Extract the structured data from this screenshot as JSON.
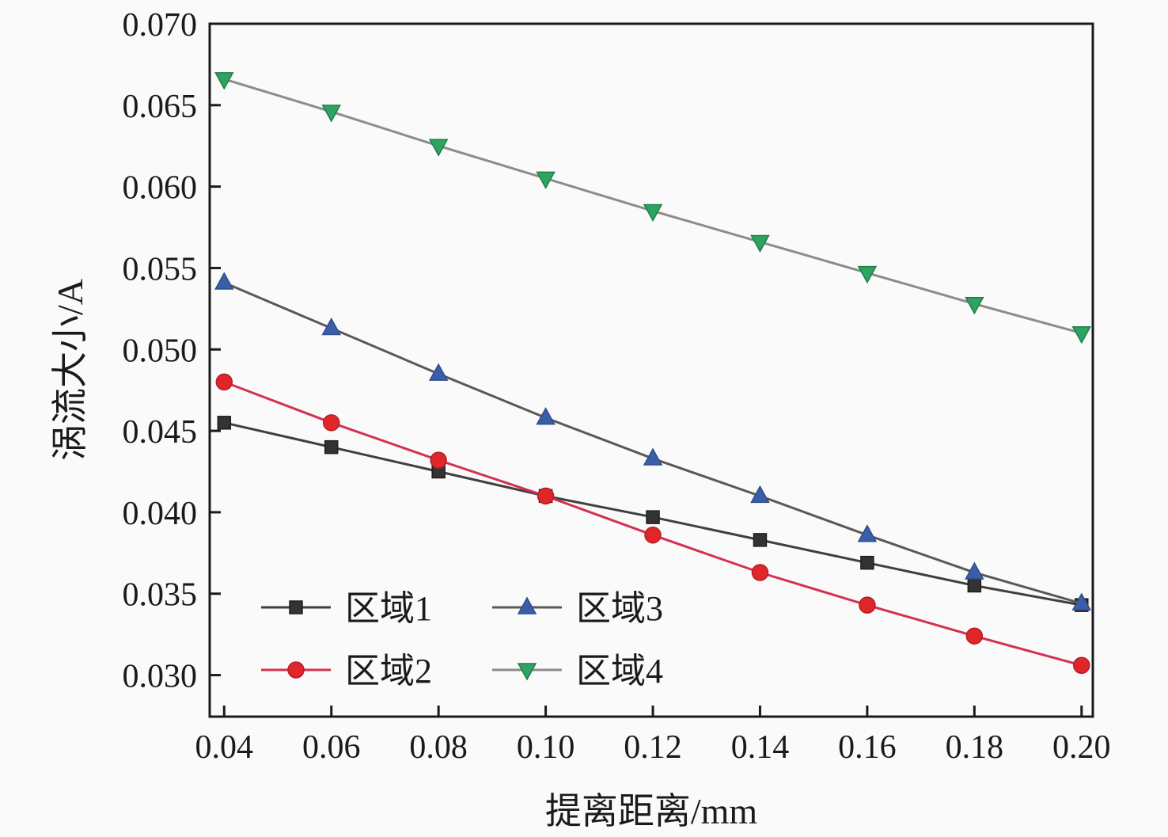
{
  "chart_data": {
    "type": "line",
    "title": "",
    "x_label": "提离距离/mm",
    "y_label": "涡流大小/A",
    "x": [
      0.04,
      0.06,
      0.08,
      0.1,
      0.12,
      0.14,
      0.16,
      0.18,
      0.2
    ],
    "x_axis": {
      "min": 0.0373,
      "max": 0.2021,
      "ticks": [
        {
          "v": 0.04,
          "label": "0.04"
        },
        {
          "v": 0.06,
          "label": "0.06"
        },
        {
          "v": 0.08,
          "label": "0.08"
        },
        {
          "v": 0.1,
          "label": "0.10"
        },
        {
          "v": 0.12,
          "label": "0.12"
        },
        {
          "v": 0.14,
          "label": "0.14"
        },
        {
          "v": 0.16,
          "label": "0.16"
        },
        {
          "v": 0.18,
          "label": "0.18"
        },
        {
          "v": 0.2,
          "label": "0.20"
        }
      ]
    },
    "y_axis": {
      "min": 0.02745,
      "max": 0.07,
      "ticks": [
        {
          "v": 0.03,
          "label": "0.030"
        },
        {
          "v": 0.035,
          "label": "0.035"
        },
        {
          "v": 0.04,
          "label": "0.040"
        },
        {
          "v": 0.045,
          "label": "0.045"
        },
        {
          "v": 0.05,
          "label": "0.050"
        },
        {
          "v": 0.055,
          "label": "0.055"
        },
        {
          "v": 0.06,
          "label": "0.060"
        },
        {
          "v": 0.065,
          "label": "0.065"
        },
        {
          "v": 0.07,
          "label": "0.070"
        }
      ]
    },
    "series": [
      {
        "name": "区域1",
        "marker": "square",
        "marker_color": "#333333",
        "marker_edge": "#1f1f1f",
        "line_color": "#3f3f3f",
        "values": [
          0.0455,
          0.044,
          0.0425,
          0.041,
          0.0397,
          0.0383,
          0.0369,
          0.0355,
          0.0343
        ]
      },
      {
        "name": "区域2",
        "marker": "circle",
        "marker_color": "#e02629",
        "marker_edge": "#b01e2c",
        "line_color": "#d5314e",
        "values": [
          0.048,
          0.0455,
          0.0432,
          0.041,
          0.0386,
          0.0363,
          0.0343,
          0.0324,
          0.0306
        ]
      },
      {
        "name": "区域3",
        "marker": "triangle-up",
        "marker_color": "#3a5fa8",
        "marker_edge": "#2f4d8a",
        "line_color": "#595959",
        "values": [
          0.0541,
          0.0513,
          0.0485,
          0.0458,
          0.0433,
          0.041,
          0.0386,
          0.0363,
          0.0344
        ]
      },
      {
        "name": "区域4",
        "marker": "triangle-down",
        "marker_color": "#2fa361",
        "marker_edge": "#1f7d49",
        "line_color": "#8c8c8c",
        "values": [
          0.0666,
          0.0646,
          0.0625,
          0.0605,
          0.0585,
          0.0566,
          0.0547,
          0.0528,
          0.051
        ]
      }
    ],
    "legend": {
      "position": "lower-left",
      "rows": [
        [
          0,
          2
        ],
        [
          1,
          3
        ]
      ]
    },
    "grid": false,
    "colors": {
      "axis": "#1a1a1a",
      "background": "#fafafa",
      "tick_label": "#1a1a1a"
    }
  }
}
